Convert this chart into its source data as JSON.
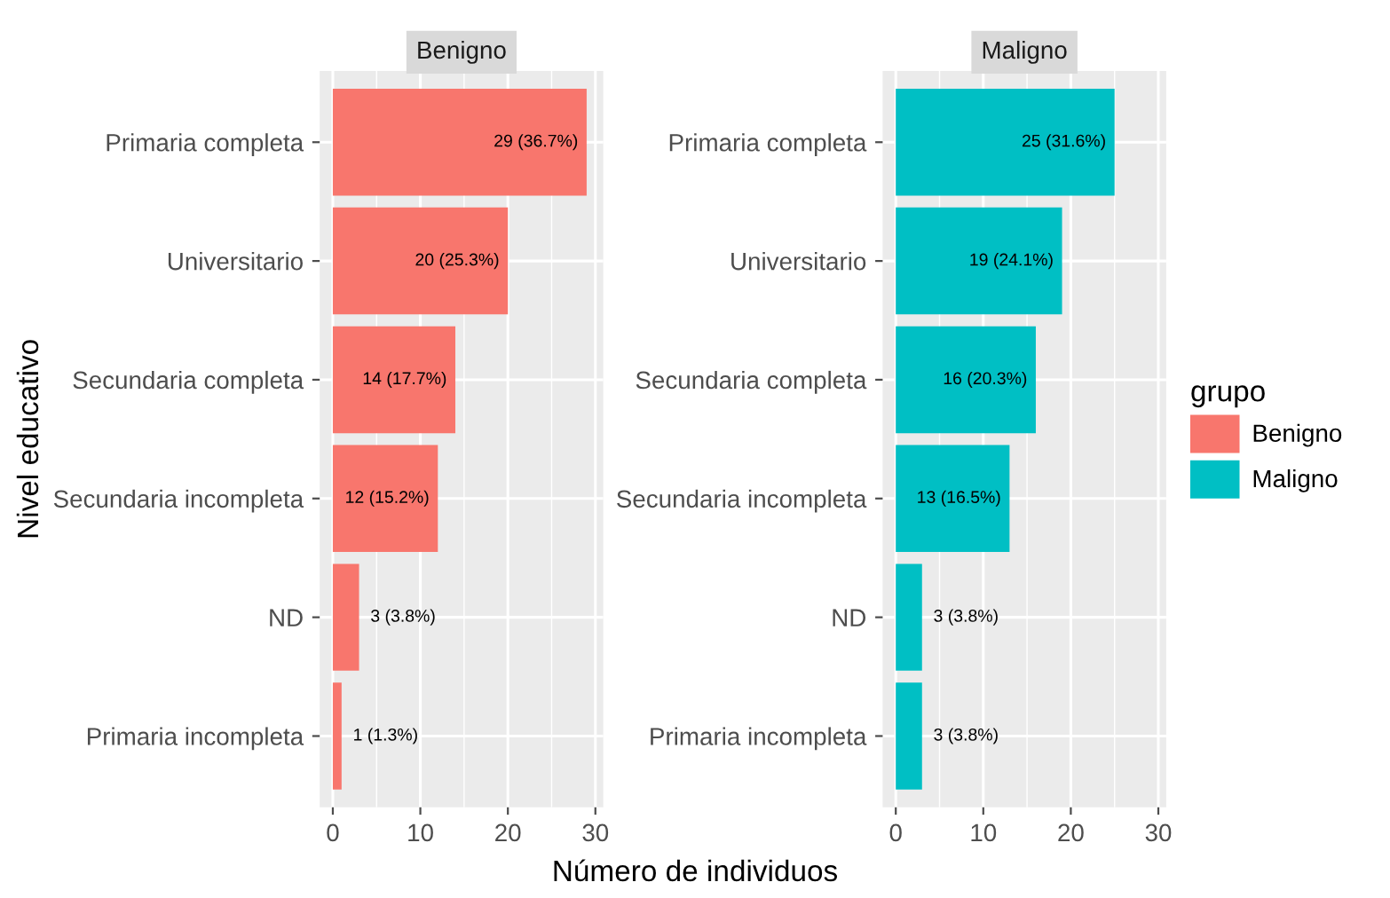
{
  "chart_data": [
    {
      "type": "bar",
      "orientation": "horizontal",
      "title": "Benigno",
      "xlabel": "Número de individuos",
      "ylabel": "Nivel educativo",
      "categories": [
        "Primaria completa",
        "Universitario",
        "Secundaria completa",
        "Secundaria incompleta",
        "ND",
        "Primaria incompleta"
      ],
      "series": [
        {
          "name": "Benigno",
          "color": "#f8766d",
          "values": [
            29,
            20,
            14,
            12,
            3,
            1
          ],
          "value_labels": [
            "29 (36.7%)",
            "20 (25.3%)",
            "14 (17.7%)",
            "12 (15.2%)",
            "3 (3.8%)",
            "1 (1.3%)"
          ]
        }
      ],
      "xlim": [
        -1.5,
        30.9
      ],
      "xticks": [
        0,
        10,
        20,
        30
      ],
      "grid": true
    },
    {
      "type": "bar",
      "orientation": "horizontal",
      "title": "Maligno",
      "legend_title": "grupo",
      "legend": "right",
      "categories": [
        "Primaria completa",
        "Universitario",
        "Secundaria completa",
        "Secundaria incompleta",
        "ND",
        "Primaria incompleta"
      ],
      "series": [
        {
          "name": "Maligno",
          "color": "#00bfc4",
          "values": [
            25,
            19,
            16,
            13,
            3,
            3
          ],
          "value_labels": [
            "25 (31.6%)",
            "19 (24.1%)",
            "16 (20.3%)",
            "13 (16.5%)",
            "3 (3.8%)",
            "3 (3.8%)"
          ]
        }
      ],
      "xlim": [
        -1.5,
        30.9
      ],
      "xticks": [
        0,
        10,
        20,
        30
      ],
      "grid": true
    }
  ]
}
